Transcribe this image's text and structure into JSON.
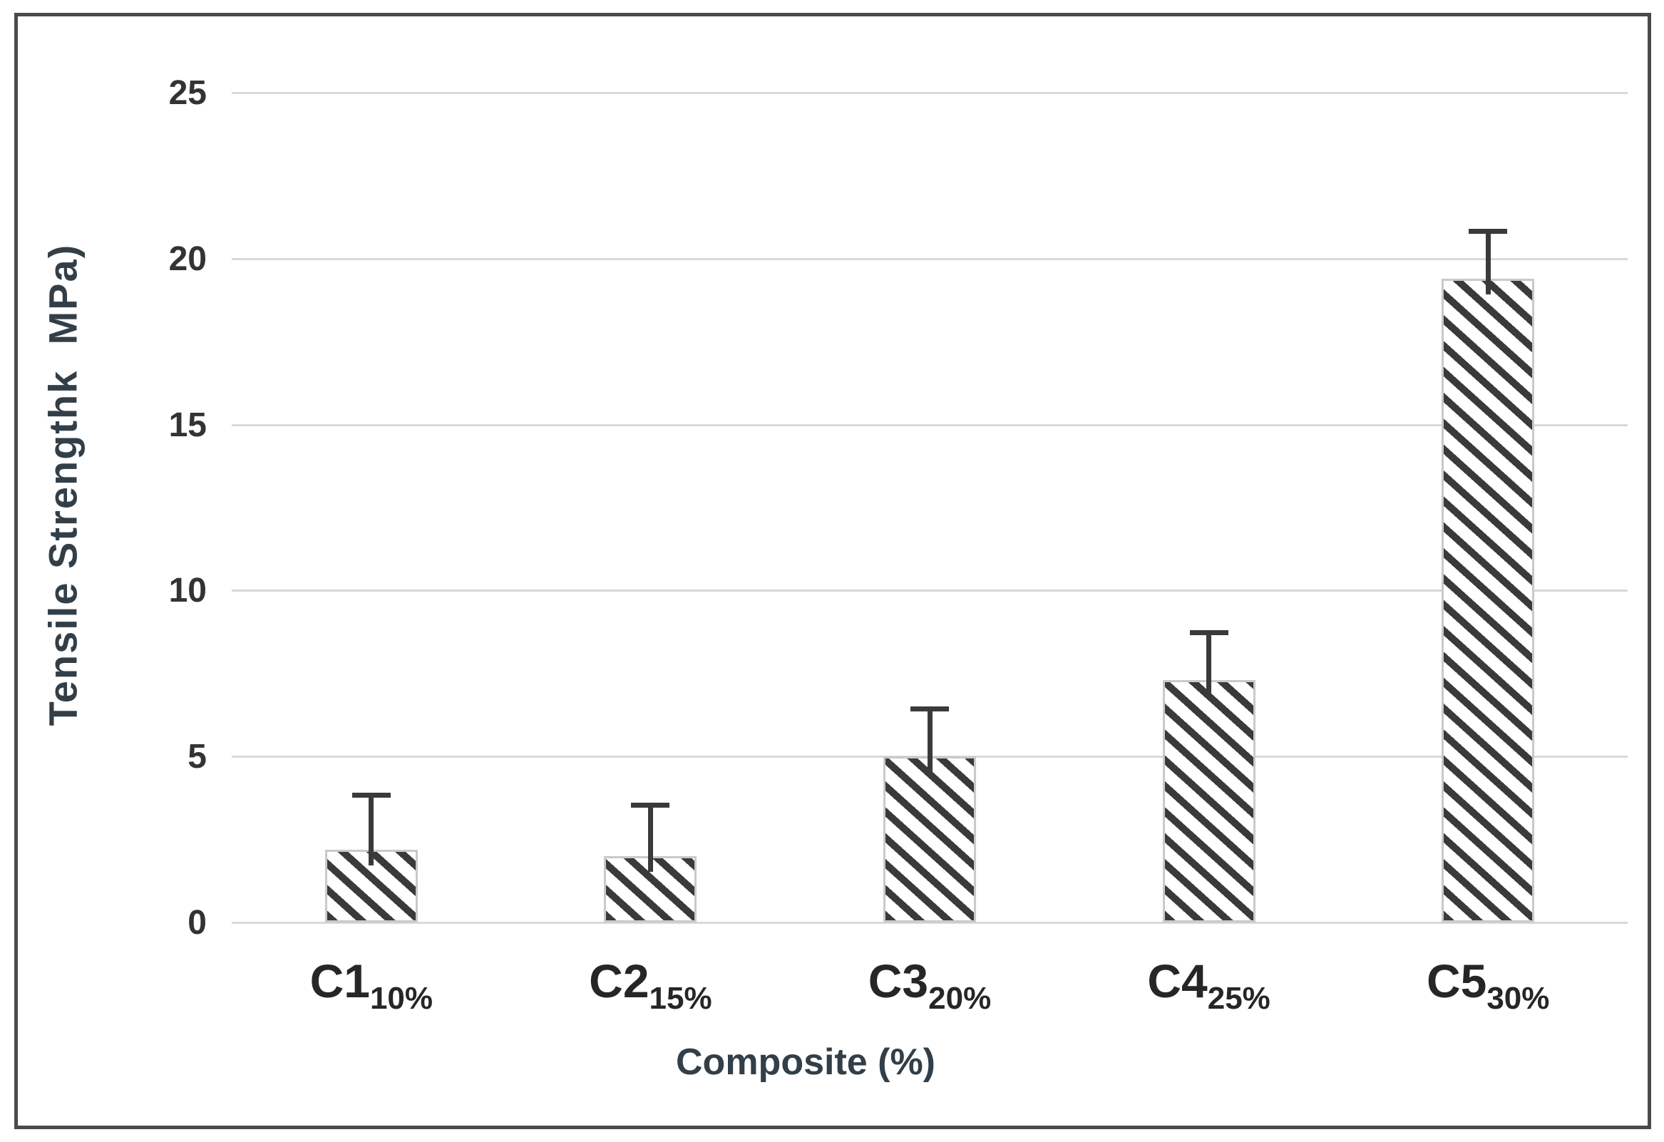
{
  "chart_data": {
    "type": "bar",
    "title": "",
    "xlabel": "Composite (%)",
    "ylabel": "Tensile Strengthk  MPa)",
    "categories": [
      {
        "name": "C1",
        "sub": "10%"
      },
      {
        "name": "C2",
        "sub": "15%"
      },
      {
        "name": "C3",
        "sub": "20%"
      },
      {
        "name": "C4",
        "sub": "25%"
      },
      {
        "name": "C5",
        "sub": "30%"
      }
    ],
    "values": [
      2.2,
      2.0,
      5.0,
      7.3,
      19.4
    ],
    "error_plus": [
      1.7,
      1.6,
      1.5,
      1.5,
      1.5
    ],
    "y_ticks": [
      0,
      5,
      10,
      15,
      20,
      25
    ],
    "ylim": [
      0,
      26.5
    ],
    "grid": true,
    "legend": "none",
    "bar_style": {
      "fill": "#ffffff",
      "hatch": "diagonal-backslash",
      "hatch_color": "#3a3a3a",
      "outline_color": "#c9c9c9"
    },
    "colors": {
      "background": "#ffffff",
      "figure_border": "#4a4a4a",
      "gridline": "#d9d9d9",
      "tick_text": "#333333",
      "category_text": "#262626",
      "axis_title_text": "#333f48",
      "error_bar": "#3a3a3a"
    }
  }
}
